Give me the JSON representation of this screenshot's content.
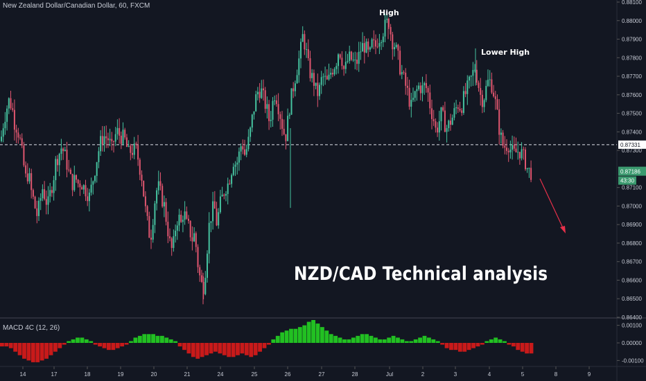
{
  "title": "New Zealand Dollar/Canadian Dollar, 60, FXCM",
  "headline": "NZD/CAD Technical analysis",
  "annotations": {
    "high": "High",
    "lower_high": "Lower High"
  },
  "macd_label": "MACD 4C (12, 26)",
  "colors": {
    "background": "#131722",
    "up_candle": "#46c3a0",
    "down_candle": "#e0566f",
    "macd_pos": "#22c022",
    "macd_neg": "#c81a1a",
    "arrow": "#e8304a",
    "price_tag": "#3b9a6f",
    "grid_text": "#c8ccd6"
  },
  "chart_data": [
    {
      "type": "candlestick",
      "series_name": "NZD/CAD 60",
      "ylim": [
        0.864,
        0.881
      ],
      "y_ticks": [
        "0.88100",
        "0.88000",
        "0.87900",
        "0.87800",
        "0.87700",
        "0.87600",
        "0.87500",
        "0.87400",
        "0.87300",
        "0.87100",
        "0.87000",
        "0.86900",
        "0.86800",
        "0.86700",
        "0.86600",
        "0.86500",
        "0.86400"
      ],
      "x_ticks": [
        "14",
        "17",
        "18",
        "19",
        "20",
        "21",
        "24",
        "25",
        "26",
        "27",
        "28",
        "Jul",
        "2",
        "3",
        "4",
        "5",
        "8",
        "9"
      ],
      "horizontal_level": "0.87331",
      "last_price": "0.87186",
      "countdown": "43:30",
      "price_path": [
        [
          0,
          0.8735
        ],
        [
          4,
          0.8745
        ],
        [
          8,
          0.8752
        ],
        [
          12,
          0.8757
        ],
        [
          16,
          0.8754
        ],
        [
          20,
          0.8745
        ],
        [
          24,
          0.8742
        ],
        [
          28,
          0.8735
        ],
        [
          32,
          0.8725
        ],
        [
          36,
          0.8715
        ],
        [
          40,
          0.8718
        ],
        [
          44,
          0.8708
        ],
        [
          48,
          0.8702
        ],
        [
          52,
          0.8695
        ],
        [
          56,
          0.87
        ],
        [
          60,
          0.871
        ],
        [
          64,
          0.8705
        ],
        [
          68,
          0.87
        ],
        [
          72,
          0.8708
        ],
        [
          76,
          0.8715
        ],
        [
          80,
          0.8725
        ],
        [
          84,
          0.8728
        ],
        [
          88,
          0.8732
        ],
        [
          92,
          0.8728
        ],
        [
          96,
          0.8722
        ],
        [
          100,
          0.8715
        ],
        [
          104,
          0.8712
        ],
        [
          108,
          0.8715
        ],
        [
          112,
          0.8712
        ],
        [
          116,
          0.8713
        ],
        [
          120,
          0.871
        ],
        [
          124,
          0.8708
        ],
        [
          128,
          0.8705
        ],
        [
          132,
          0.8712
        ],
        [
          136,
          0.872
        ],
        [
          140,
          0.8728
        ],
        [
          144,
          0.8734
        ],
        [
          148,
          0.8738
        ],
        [
          152,
          0.8737
        ],
        [
          156,
          0.8736
        ],
        [
          160,
          0.873
        ],
        [
          164,
          0.8737
        ],
        [
          168,
          0.874
        ],
        [
          172,
          0.8738
        ],
        [
          176,
          0.8737
        ],
        [
          180,
          0.8735
        ],
        [
          184,
          0.8728
        ],
        [
          188,
          0.873
        ],
        [
          192,
          0.873
        ],
        [
          196,
          0.873
        ],
        [
          200,
          0.8722
        ],
        [
          204,
          0.8715
        ],
        [
          208,
          0.87
        ],
        [
          212,
          0.869
        ],
        [
          216,
          0.8682
        ],
        [
          220,
          0.8695
        ],
        [
          224,
          0.8708
        ],
        [
          228,
          0.871
        ],
        [
          232,
          0.8705
        ],
        [
          236,
          0.87
        ],
        [
          240,
          0.869
        ],
        [
          244,
          0.868
        ],
        [
          248,
          0.8675
        ],
        [
          252,
          0.8688
        ],
        [
          256,
          0.8695
        ],
        [
          260,
          0.869
        ],
        [
          264,
          0.8698
        ],
        [
          268,
          0.869
        ],
        [
          272,
          0.8688
        ],
        [
          276,
          0.8682
        ],
        [
          280,
          0.8685
        ],
        [
          284,
          0.867
        ],
        [
          288,
          0.866
        ],
        [
          292,
          0.8655
        ],
        [
          296,
          0.8668
        ],
        [
          300,
          0.8688
        ],
        [
          304,
          0.8696
        ],
        [
          308,
          0.87
        ],
        [
          312,
          0.869
        ],
        [
          316,
          0.87
        ],
        [
          320,
          0.8705
        ],
        [
          324,
          0.871
        ],
        [
          328,
          0.8712
        ],
        [
          332,
          0.8718
        ],
        [
          336,
          0.8725
        ],
        [
          340,
          0.8722
        ],
        [
          344,
          0.8728
        ],
        [
          348,
          0.8735
        ],
        [
          352,
          0.8728
        ],
        [
          356,
          0.8732
        ],
        [
          360,
          0.874
        ],
        [
          364,
          0.875
        ],
        [
          368,
          0.8758
        ],
        [
          372,
          0.8763
        ],
        [
          376,
          0.8762
        ],
        [
          380,
          0.8757
        ],
        [
          384,
          0.8752
        ],
        [
          388,
          0.8745
        ],
        [
          392,
          0.8755
        ],
        [
          396,
          0.8762
        ],
        [
          400,
          0.8755
        ],
        [
          404,
          0.8748
        ],
        [
          408,
          0.874
        ],
        [
          412,
          0.8738
        ],
        [
          416,
          0.8752
        ],
        [
          420,
          0.876
        ],
        [
          424,
          0.8768
        ],
        [
          428,
          0.8775
        ],
        [
          432,
          0.8782
        ],
        [
          436,
          0.8792
        ],
        [
          440,
          0.8785
        ],
        [
          444,
          0.8775
        ],
        [
          448,
          0.877
        ],
        [
          452,
          0.8767
        ],
        [
          456,
          0.876
        ],
        [
          460,
          0.8763
        ],
        [
          464,
          0.877
        ],
        [
          468,
          0.8768
        ],
        [
          472,
          0.8766
        ],
        [
          476,
          0.8772
        ],
        [
          480,
          0.8775
        ],
        [
          484,
          0.8778
        ],
        [
          488,
          0.8785
        ],
        [
          492,
          0.878
        ],
        [
          496,
          0.8772
        ],
        [
          500,
          0.8778
        ],
        [
          504,
          0.878
        ],
        [
          508,
          0.8778
        ],
        [
          512,
          0.8776
        ],
        [
          516,
          0.878
        ],
        [
          520,
          0.8785
        ],
        [
          524,
          0.8787
        ],
        [
          528,
          0.8784
        ],
        [
          532,
          0.878
        ],
        [
          536,
          0.8788
        ],
        [
          540,
          0.8785
        ],
        [
          544,
          0.879
        ],
        [
          548,
          0.8792
        ],
        [
          552,
          0.8795
        ],
        [
          556,
          0.8798
        ],
        [
          560,
          0.88
        ],
        [
          564,
          0.879
        ],
        [
          568,
          0.8787
        ],
        [
          572,
          0.8782
        ],
        [
          576,
          0.8775
        ],
        [
          580,
          0.877
        ],
        [
          584,
          0.8765
        ],
        [
          588,
          0.876
        ],
        [
          592,
          0.8753
        ],
        [
          596,
          0.8758
        ],
        [
          600,
          0.8762
        ],
        [
          604,
          0.8765
        ],
        [
          608,
          0.8763
        ],
        [
          612,
          0.8765
        ],
        [
          616,
          0.8762
        ],
        [
          620,
          0.8753
        ],
        [
          624,
          0.8748
        ],
        [
          628,
          0.874
        ],
        [
          632,
          0.8745
        ],
        [
          636,
          0.875
        ],
        [
          640,
          0.8745
        ],
        [
          644,
          0.8742
        ],
        [
          648,
          0.8745
        ],
        [
          652,
          0.8748
        ],
        [
          656,
          0.8752
        ],
        [
          660,
          0.8755
        ],
        [
          664,
          0.8753
        ],
        [
          668,
          0.8758
        ],
        [
          672,
          0.8762
        ],
        [
          676,
          0.8766
        ],
        [
          680,
          0.877
        ],
        [
          684,
          0.8775
        ],
        [
          688,
          0.8768
        ],
        [
          692,
          0.876
        ],
        [
          696,
          0.8757
        ],
        [
          700,
          0.8763
        ],
        [
          704,
          0.8768
        ],
        [
          708,
          0.8766
        ],
        [
          712,
          0.876
        ],
        [
          716,
          0.875
        ],
        [
          720,
          0.874
        ],
        [
          724,
          0.8733
        ],
        [
          728,
          0.8732
        ],
        [
          732,
          0.8734
        ],
        [
          736,
          0.873
        ],
        [
          740,
          0.8728
        ],
        [
          744,
          0.8729
        ],
        [
          748,
          0.873
        ],
        [
          752,
          0.8728
        ],
        [
          756,
          0.8725
        ],
        [
          760,
          0.872
        ],
        [
          764,
          0.8718
        ],
        [
          768,
          0.87186
        ]
      ]
    },
    {
      "type": "histogram",
      "series_name": "MACD 4C (12, 26)",
      "ylim": [
        -0.0013,
        0.0013
      ],
      "y_ticks": [
        "0.00100",
        "0.00000",
        "-0.00100"
      ],
      "values": [
        -0.0002,
        -0.0002,
        -0.0003,
        -0.0005,
        -0.0007,
        -0.0009,
        -0.001,
        -0.0011,
        -0.0011,
        -0.001,
        -0.0009,
        -0.0007,
        -0.0005,
        -0.0003,
        -0.0001,
        0.0001,
        0.0002,
        0.0003,
        0.0003,
        0.0002,
        0.0001,
        -0.0001,
        -0.0002,
        -0.0003,
        -0.0004,
        -0.0004,
        -0.0003,
        -0.0002,
        -0.0001,
        0.0001,
        0.0003,
        0.0004,
        0.0005,
        0.0005,
        0.0005,
        0.0004,
        0.0004,
        0.0003,
        0.0002,
        0.0001,
        -0.0002,
        -0.0004,
        -0.0006,
        -0.0008,
        -0.0009,
        -0.0008,
        -0.0007,
        -0.0006,
        -0.0005,
        -0.0006,
        -0.0007,
        -0.0008,
        -0.0008,
        -0.0007,
        -0.0006,
        -0.0007,
        -0.0008,
        -0.0007,
        -0.0005,
        -0.0003,
        -0.0001,
        0.0002,
        0.0004,
        0.0006,
        0.0007,
        0.0008,
        0.0008,
        0.0009,
        0.001,
        0.0012,
        0.0013,
        0.0011,
        0.0009,
        0.0007,
        0.0005,
        0.0004,
        0.0003,
        0.0002,
        0.0002,
        0.0003,
        0.0004,
        0.0005,
        0.0005,
        0.0004,
        0.0003,
        0.0002,
        0.0002,
        0.0003,
        0.0004,
        0.0003,
        0.0002,
        0.0001,
        0.0001,
        0.0002,
        0.0003,
        0.0004,
        0.0003,
        0.0002,
        0.0001,
        -0.0001,
        -0.0003,
        -0.0004,
        -0.0004,
        -0.0005,
        -0.0005,
        -0.0004,
        -0.0003,
        -0.0002,
        -0.0001,
        0.0001,
        0.0002,
        0.0003,
        0.0002,
        0.0001,
        -0.0001,
        -0.0002,
        -0.0004,
        -0.0005,
        -0.0006,
        -0.0006
      ]
    }
  ]
}
